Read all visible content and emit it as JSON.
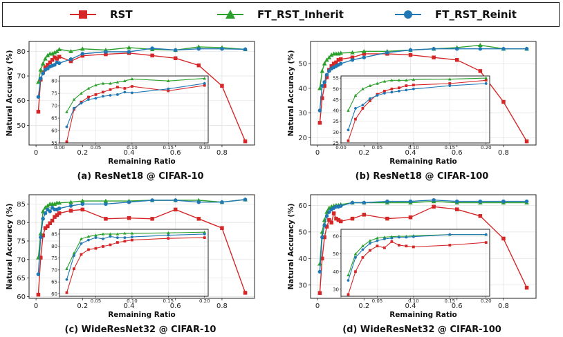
{
  "legend": {
    "items": [
      {
        "label": "RST",
        "marker": "square",
        "color": "#d62728"
      },
      {
        "label": "FT_RST_Inherit",
        "marker": "triangle",
        "color": "#2ca02c"
      },
      {
        "label": "FT_RST_Reinit",
        "marker": "circle",
        "color": "#1f77b4"
      }
    ]
  },
  "chart_data": [
    {
      "type": "line",
      "caption": "(a) ResNet18 @ CIFAR-10",
      "xlabel": "Remaining Ratio",
      "ylabel": "Natural Accuracy (%)",
      "xlim": [
        -0.03,
        0.94
      ],
      "ylim": [
        42,
        84
      ],
      "xticks": [
        0.0,
        0.2,
        0.4,
        0.6,
        0.8
      ],
      "yticks": [
        50,
        60,
        70,
        80
      ],
      "series": [
        {
          "name": "RST",
          "x": [
            0.01,
            0.02,
            0.03,
            0.04,
            0.05,
            0.06,
            0.07,
            0.08,
            0.09,
            0.1,
            0.15,
            0.2,
            0.3,
            0.4,
            0.5,
            0.6,
            0.7,
            0.8,
            0.9
          ],
          "y": [
            55.5,
            68.5,
            71.5,
            73.5,
            74.5,
            75.5,
            76.5,
            77.5,
            77.0,
            77.8,
            76.0,
            78.2,
            78.8,
            79.3,
            78.3,
            77.2,
            74.3,
            66.0,
            43.5
          ]
        },
        {
          "name": "FT_RST_Inherit",
          "x": [
            0.01,
            0.02,
            0.03,
            0.04,
            0.05,
            0.06,
            0.07,
            0.08,
            0.09,
            0.1,
            0.15,
            0.2,
            0.3,
            0.4,
            0.5,
            0.6,
            0.7,
            0.8,
            0.9
          ],
          "y": [
            67.5,
            72.5,
            75.0,
            77.0,
            78.3,
            79.0,
            79.0,
            79.5,
            80.0,
            80.8,
            80.0,
            81.0,
            80.5,
            81.5,
            80.8,
            80.5,
            81.8,
            81.5,
            80.8
          ]
        },
        {
          "name": "FT_RST_Reinit",
          "x": [
            0.01,
            0.02,
            0.03,
            0.04,
            0.05,
            0.06,
            0.07,
            0.08,
            0.09,
            0.1,
            0.15,
            0.2,
            0.3,
            0.4,
            0.5,
            0.6,
            0.7,
            0.8,
            0.9
          ],
          "y": [
            61.5,
            69.0,
            71.0,
            72.5,
            73.0,
            73.8,
            74.2,
            74.5,
            75.5,
            75.2,
            76.8,
            79.0,
            79.8,
            79.8,
            81.2,
            80.5,
            81.0,
            81.0,
            80.8
          ]
        }
      ],
      "inset": {
        "xlim": [
          0.0,
          0.205
        ],
        "ylim": [
          55,
          82
        ],
        "xticks": [
          0.0,
          0.05,
          0.1,
          0.15,
          0.2
        ],
        "xtick_labels": [
          "0.00",
          "0.05",
          "0.10",
          "0.15",
          "0.20"
        ],
        "yticks": [
          55,
          60,
          65,
          70,
          75,
          80
        ],
        "ytick_labels": [
          "55",
          "60",
          "65",
          "70",
          "75",
          "80"
        ],
        "xmax": 0.2
      }
    },
    {
      "type": "line",
      "caption": "(b) ResNet18 @ CIFAR-100",
      "xlabel": "Remaining Ratio",
      "ylabel": "Natural Accuracy (%)",
      "xlim": [
        -0.03,
        0.94
      ],
      "ylim": [
        17,
        59
      ],
      "xticks": [
        0.0,
        0.2,
        0.4,
        0.6,
        0.8
      ],
      "yticks": [
        20,
        30,
        40,
        50
      ],
      "series": [
        {
          "name": "RST",
          "x": [
            0.01,
            0.02,
            0.03,
            0.04,
            0.05,
            0.06,
            0.07,
            0.08,
            0.09,
            0.1,
            0.15,
            0.2,
            0.3,
            0.4,
            0.5,
            0.6,
            0.7,
            0.8,
            0.9
          ],
          "y": [
            26.0,
            36.0,
            41.0,
            44.5,
            47.5,
            49.0,
            50.0,
            50.5,
            51.5,
            51.8,
            52.5,
            54.0,
            54.0,
            53.5,
            52.5,
            51.5,
            47.0,
            34.5,
            18.5
          ]
        },
        {
          "name": "FT_RST_Inherit",
          "x": [
            0.01,
            0.02,
            0.03,
            0.04,
            0.05,
            0.06,
            0.07,
            0.08,
            0.09,
            0.1,
            0.15,
            0.2,
            0.3,
            0.4,
            0.5,
            0.6,
            0.7,
            0.8,
            0.9
          ],
          "y": [
            40.0,
            47.0,
            50.0,
            51.5,
            52.5,
            53.5,
            54.0,
            54.0,
            54.0,
            54.3,
            54.5,
            55.0,
            55.0,
            55.5,
            56.0,
            56.5,
            57.5,
            56.0,
            56.0
          ]
        },
        {
          "name": "FT_RST_Reinit",
          "x": [
            0.01,
            0.02,
            0.03,
            0.04,
            0.05,
            0.06,
            0.07,
            0.08,
            0.09,
            0.1,
            0.15,
            0.2,
            0.3,
            0.4,
            0.5,
            0.6,
            0.7,
            0.8,
            0.9
          ],
          "y": [
            31.0,
            41.0,
            42.5,
            45.5,
            47.0,
            48.0,
            48.5,
            49.0,
            49.5,
            50.0,
            51.5,
            52.5,
            54.5,
            55.5,
            56.0,
            56.0,
            56.0,
            56.0,
            56.0
          ]
        }
      ],
      "inset": {
        "xlim": [
          0.0,
          0.205
        ],
        "ylim": [
          25,
          56
        ],
        "xticks": [
          0.0,
          0.05,
          0.1,
          0.15,
          0.2
        ],
        "xtick_labels": [
          "0.00",
          "0.05",
          "0.10",
          "0.15",
          "0.20"
        ],
        "yticks": [
          25,
          30,
          35,
          40,
          45,
          50,
          55
        ],
        "ytick_labels": [
          "25",
          "30",
          "35",
          "40",
          "45",
          "50",
          "55"
        ],
        "xmax": 0.2
      }
    },
    {
      "type": "line",
      "caption": "(c) WideResNet32 @ CIFAR-10",
      "xlabel": "Remaining Ratio",
      "ylabel": "Natural Accuracy (%)",
      "xlim": [
        -0.03,
        0.94
      ],
      "ylim": [
        59.5,
        87.5
      ],
      "xticks": [
        0.0,
        0.2,
        0.4,
        0.6,
        0.8
      ],
      "yticks": [
        60,
        65,
        70,
        75,
        80,
        85
      ],
      "series": [
        {
          "name": "RST",
          "x": [
            0.01,
            0.02,
            0.03,
            0.04,
            0.05,
            0.06,
            0.07,
            0.08,
            0.09,
            0.1,
            0.15,
            0.2,
            0.3,
            0.4,
            0.5,
            0.6,
            0.7,
            0.8,
            0.9
          ],
          "y": [
            60.5,
            70.5,
            76.5,
            78.5,
            79.0,
            79.8,
            80.5,
            81.5,
            82.0,
            82.5,
            83.2,
            83.5,
            81.0,
            81.2,
            81.0,
            83.5,
            81.0,
            78.5,
            61.0
          ]
        },
        {
          "name": "FT_RST_Inherit",
          "x": [
            0.01,
            0.02,
            0.03,
            0.04,
            0.05,
            0.06,
            0.07,
            0.08,
            0.09,
            0.1,
            0.15,
            0.2,
            0.3,
            0.4,
            0.5,
            0.6,
            0.7,
            0.8,
            0.9
          ],
          "y": [
            70.5,
            77.0,
            83.0,
            84.0,
            84.5,
            85.0,
            85.0,
            85.0,
            85.3,
            85.3,
            85.5,
            85.8,
            85.8,
            85.8,
            86.0,
            86.0,
            86.0,
            85.5,
            86.2
          ]
        },
        {
          "name": "FT_RST_Reinit",
          "x": [
            0.01,
            0.02,
            0.03,
            0.04,
            0.05,
            0.06,
            0.07,
            0.08,
            0.09,
            0.1,
            0.15,
            0.2,
            0.3,
            0.4,
            0.5,
            0.6,
            0.7,
            0.8,
            0.9
          ],
          "y": [
            66.0,
            76.0,
            81.0,
            82.5,
            83.5,
            83.0,
            84.0,
            83.5,
            83.5,
            83.8,
            84.5,
            85.0,
            85.0,
            85.5,
            86.0,
            86.0,
            85.5,
            85.5,
            86.2
          ]
        }
      ],
      "inset": {
        "xlim": [
          0.0,
          0.205
        ],
        "ylim": [
          59,
          87
        ],
        "xticks": [
          0.0,
          0.05,
          0.1,
          0.15,
          0.2
        ],
        "xtick_labels": [
          "",
          "0.05",
          "0.10",
          "0.15",
          "0.20"
        ],
        "yticks": [
          60,
          65,
          70,
          75,
          80,
          85
        ],
        "ytick_labels": [
          "60",
          "65",
          "70",
          "75",
          "80",
          "85"
        ],
        "xmax": 0.2
      }
    },
    {
      "type": "line",
      "caption": "(d) WideResNet32 @ CIFAR-100",
      "xlabel": "Remaining Ratio",
      "ylabel": "Natural Accuracy (%)",
      "xlim": [
        -0.03,
        0.94
      ],
      "ylim": [
        25,
        64
      ],
      "xticks": [
        0.0,
        0.2,
        0.4,
        0.6,
        0.8
      ],
      "yticks": [
        30,
        40,
        50,
        60
      ],
      "series": [
        {
          "name": "RST",
          "x": [
            0.01,
            0.02,
            0.03,
            0.04,
            0.05,
            0.06,
            0.07,
            0.08,
            0.09,
            0.1,
            0.15,
            0.2,
            0.3,
            0.4,
            0.5,
            0.6,
            0.7,
            0.8,
            0.9
          ],
          "y": [
            27.0,
            40.0,
            48.0,
            52.0,
            54.5,
            53.5,
            57.0,
            55.0,
            54.5,
            54.0,
            55.0,
            56.5,
            55.0,
            55.5,
            59.5,
            58.5,
            56.0,
            47.5,
            29.0
          ]
        },
        {
          "name": "FT_RST_Inherit",
          "x": [
            0.01,
            0.02,
            0.03,
            0.04,
            0.05,
            0.06,
            0.07,
            0.08,
            0.09,
            0.1,
            0.15,
            0.2,
            0.3,
            0.4,
            0.5,
            0.6,
            0.7,
            0.8,
            0.9
          ],
          "y": [
            38.0,
            50.0,
            54.5,
            57.5,
            59.0,
            59.5,
            59.8,
            60.0,
            60.0,
            60.3,
            61.0,
            61.0,
            61.0,
            61.0,
            61.5,
            61.0,
            61.0,
            61.0,
            61.0
          ]
        },
        {
          "name": "FT_RST_Reinit",
          "x": [
            0.01,
            0.02,
            0.03,
            0.04,
            0.05,
            0.06,
            0.07,
            0.08,
            0.09,
            0.1,
            0.15,
            0.2,
            0.3,
            0.4,
            0.5,
            0.6,
            0.7,
            0.8,
            0.9
          ],
          "y": [
            35.0,
            48.0,
            52.5,
            56.0,
            57.5,
            58.5,
            59.0,
            59.5,
            59.5,
            59.8,
            61.0,
            61.0,
            61.5,
            61.5,
            62.0,
            61.5,
            61.5,
            61.5,
            61.5
          ]
        }
      ],
      "inset": {
        "xlim": [
          0.0,
          0.205
        ],
        "ylim": [
          26,
          64
        ],
        "xticks": [
          0.0,
          0.05,
          0.1,
          0.15,
          0.2
        ],
        "xtick_labels": [
          "",
          "0.05",
          "0.10",
          "0.15",
          "0.20"
        ],
        "yticks": [
          30,
          40,
          50,
          60
        ],
        "ytick_labels": [
          "30",
          "40",
          "50",
          "60"
        ],
        "xmax": 0.2
      }
    }
  ]
}
